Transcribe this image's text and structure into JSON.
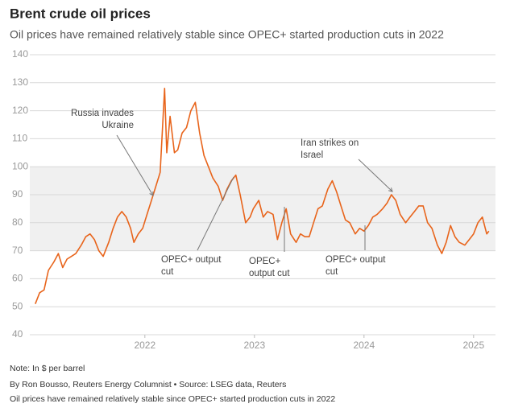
{
  "chart_data": {
    "type": "line",
    "title": "Brent crude oil prices",
    "subtitle": "Oil prices have remained relatively stable since OPEC+ started production cuts in 2022",
    "note": "Note: In $ per barrel",
    "source": "By Ron Bousso, Reuters Energy Columnist • Source: LSEG data, Reuters",
    "caption": "Oil prices have remained relatively stable since OPEC+ started production cuts in 2022",
    "xlim": [
      2020.95,
      2025.2
    ],
    "xticks": [
      2022,
      2023,
      2024,
      2025
    ],
    "ylim": [
      40,
      140
    ],
    "yticks": [
      40,
      50,
      60,
      70,
      80,
      90,
      100,
      110,
      120,
      130,
      140
    ],
    "grid": true,
    "shaded_range": [
      70,
      100
    ],
    "annotations": [
      {
        "lines": [
          "Russia invades",
          "Ukraine"
        ]
      },
      {
        "lines": [
          "Iran strikes on",
          "Israel"
        ]
      },
      {
        "lines": [
          "OPEC+ output",
          "cut"
        ]
      },
      {
        "lines": [
          "OPEC+",
          "output cut"
        ]
      },
      {
        "lines": [
          "OPEC+ output",
          "cut"
        ]
      }
    ],
    "series": [
      {
        "name": "Brent",
        "color": "#e8641b",
        "x": [
          2021.0,
          2021.04,
          2021.08,
          2021.12,
          2021.17,
          2021.21,
          2021.25,
          2021.29,
          2021.33,
          2021.37,
          2021.42,
          2021.46,
          2021.5,
          2021.54,
          2021.58,
          2021.62,
          2021.67,
          2021.71,
          2021.75,
          2021.79,
          2021.83,
          2021.87,
          2021.9,
          2021.94,
          2021.98,
          2022.02,
          2022.06,
          2022.1,
          2022.14,
          2022.18,
          2022.2,
          2022.23,
          2022.27,
          2022.3,
          2022.34,
          2022.38,
          2022.42,
          2022.46,
          2022.5,
          2022.54,
          2022.58,
          2022.62,
          2022.67,
          2022.71,
          2022.75,
          2022.79,
          2022.83,
          2022.87,
          2022.92,
          2022.96,
          2022.99,
          2023.04,
          2023.08,
          2023.12,
          2023.17,
          2023.21,
          2023.25,
          2023.29,
          2023.33,
          2023.38,
          2023.42,
          2023.46,
          2023.5,
          2023.54,
          2023.58,
          2023.62,
          2023.67,
          2023.71,
          2023.75,
          2023.79,
          2023.83,
          2023.87,
          2023.92,
          2023.96,
          2024.0,
          2024.04,
          2024.08,
          2024.12,
          2024.17,
          2024.21,
          2024.25,
          2024.29,
          2024.33,
          2024.38,
          2024.42,
          2024.46,
          2024.5,
          2024.54,
          2024.58,
          2024.62,
          2024.67,
          2024.71,
          2024.75,
          2024.79,
          2024.83,
          2024.87,
          2024.92,
          2024.96,
          2025.0,
          2025.04,
          2025.08,
          2025.12,
          2025.14
        ],
        "values": [
          51,
          55,
          56,
          63,
          66,
          69,
          64,
          67,
          68,
          69,
          72,
          75,
          76,
          74,
          70,
          68,
          73,
          78,
          82,
          84,
          82,
          78,
          73,
          76,
          78,
          83,
          88,
          93,
          98,
          128,
          105,
          118,
          105,
          106,
          112,
          114,
          120,
          123,
          112,
          104,
          100,
          96,
          93,
          88,
          92,
          95,
          97,
          90,
          80,
          82,
          85,
          88,
          82,
          84,
          83,
          74,
          80,
          85,
          76,
          73,
          76,
          75,
          75,
          80,
          85,
          86,
          92,
          95,
          91,
          86,
          81,
          80,
          76,
          78,
          77,
          79,
          82,
          83,
          85,
          87,
          90,
          88,
          83,
          80,
          82,
          84,
          86,
          86,
          80,
          78,
          72,
          69,
          73,
          79,
          75,
          73,
          72,
          74,
          76,
          80,
          82,
          76,
          77
        ]
      }
    ]
  }
}
